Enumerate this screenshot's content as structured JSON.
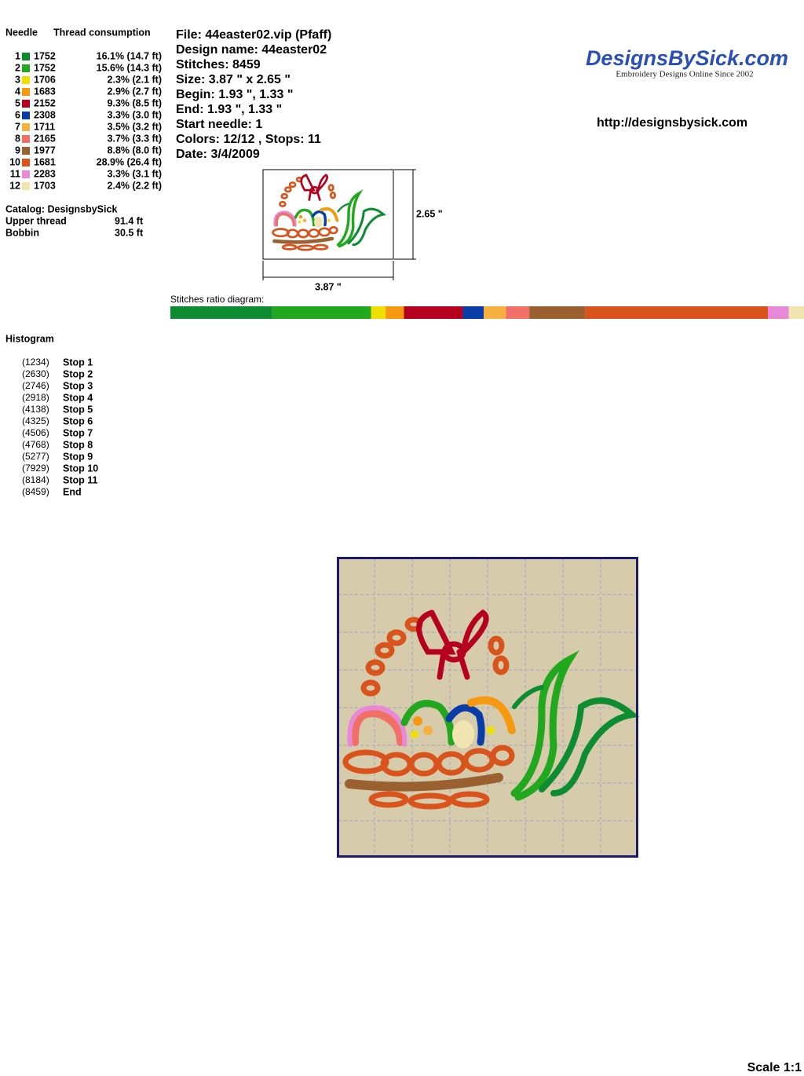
{
  "header": {
    "needle": "Needle",
    "thread": "Thread consumption"
  },
  "needles": [
    {
      "number": 1,
      "code": "1752",
      "color": "#0e8c32",
      "percent": {
        "value": 16.1,
        "label": "16.1% (14.7 ft)"
      }
    },
    {
      "number": 2,
      "code": "1752",
      "color": "#22a81e",
      "percent": {
        "value": 15.6,
        "label": "15.6% (14.3 ft)"
      }
    },
    {
      "number": 3,
      "code": "1706",
      "color": "#f0e000",
      "percent": {
        "value": 2.3,
        "label": "2.3% (2.1 ft)"
      }
    },
    {
      "number": 4,
      "code": "1683",
      "color": "#f59a10",
      "percent": {
        "value": 2.9,
        "label": "2.9% (2.7 ft)"
      }
    },
    {
      "number": 5,
      "code": "2152",
      "color": "#b5001e",
      "percent": {
        "value": 9.3,
        "label": "9.3% (8.5 ft)"
      }
    },
    {
      "number": 6,
      "code": "2308",
      "color": "#0a3ca8",
      "percent": {
        "value": 3.3,
        "label": "3.3% (3.0 ft)"
      }
    },
    {
      "number": 7,
      "code": "1711",
      "color": "#f5b040",
      "percent": {
        "value": 3.5,
        "label": "3.5% (3.2 ft)"
      }
    },
    {
      "number": 8,
      "code": "2165",
      "color": "#f07068",
      "percent": {
        "value": 3.7,
        "label": "3.7% (3.3 ft)"
      }
    },
    {
      "number": 9,
      "code": "1977",
      "color": "#9a6030",
      "percent": {
        "value": 8.8,
        "label": "8.8% (8.0 ft)"
      }
    },
    {
      "number": 10,
      "code": "1681",
      "color": "#d8541c",
      "percent": {
        "value": 28.9,
        "label": "28.9% (26.4 ft)"
      }
    },
    {
      "number": 11,
      "code": "2283",
      "color": "#e888d8",
      "percent": {
        "value": 3.3,
        "label": "3.3% (3.1 ft)"
      }
    },
    {
      "number": 12,
      "code": "1703",
      "color": "#f0e4b0",
      "percent": {
        "value": 2.4,
        "label": "2.4% (2.2 ft)"
      }
    }
  ],
  "catalog": "Catalog: DesignsbySick",
  "upper_thread": {
    "label": "Upper thread",
    "value": "91.4 ft"
  },
  "bobbin": {
    "label": "Bobbin",
    "value": "30.5 ft"
  },
  "info": [
    "File: 44easter02.vip  (Pfaff)",
    "Design name: 44easter02",
    "Stitches: 8459",
    "Size: 3.87 \" x 2.65 \"",
    "Begin: 1.93 \", 1.33 \"",
    "End: 1.93 \", 1.33 \"",
    "Start needle: 1",
    "Colors: 12/12 , Stops: 11",
    "Date: 3/4/2009"
  ],
  "logo": {
    "title": "DesignsBySick.com",
    "subtitle": "Embroidery Designs Online Since 2002"
  },
  "url": "http://designsbysick.com",
  "preview": {
    "width": "3.87 \"",
    "height": "2.65 \""
  },
  "ratio_title": "Stitches ratio diagram:",
  "histogram": {
    "title": "Histogram",
    "rows": [
      {
        "count": "(1234)",
        "label": "Stop 1"
      },
      {
        "count": "(2630)",
        "label": "Stop 2"
      },
      {
        "count": "(2746)",
        "label": "Stop 3"
      },
      {
        "count": "(2918)",
        "label": "Stop 4"
      },
      {
        "count": "(4138)",
        "label": "Stop 5"
      },
      {
        "count": "(4325)",
        "label": "Stop 6"
      },
      {
        "count": "(4506)",
        "label": "Stop 7"
      },
      {
        "count": "(4768)",
        "label": "Stop 8"
      },
      {
        "count": "(5277)",
        "label": "Stop 9"
      },
      {
        "count": "(7929)",
        "label": "Stop 10"
      },
      {
        "count": "(8184)",
        "label": "Stop 11"
      },
      {
        "count": "(8459)",
        "label": "End"
      }
    ]
  },
  "scale": "Scale 1:1"
}
